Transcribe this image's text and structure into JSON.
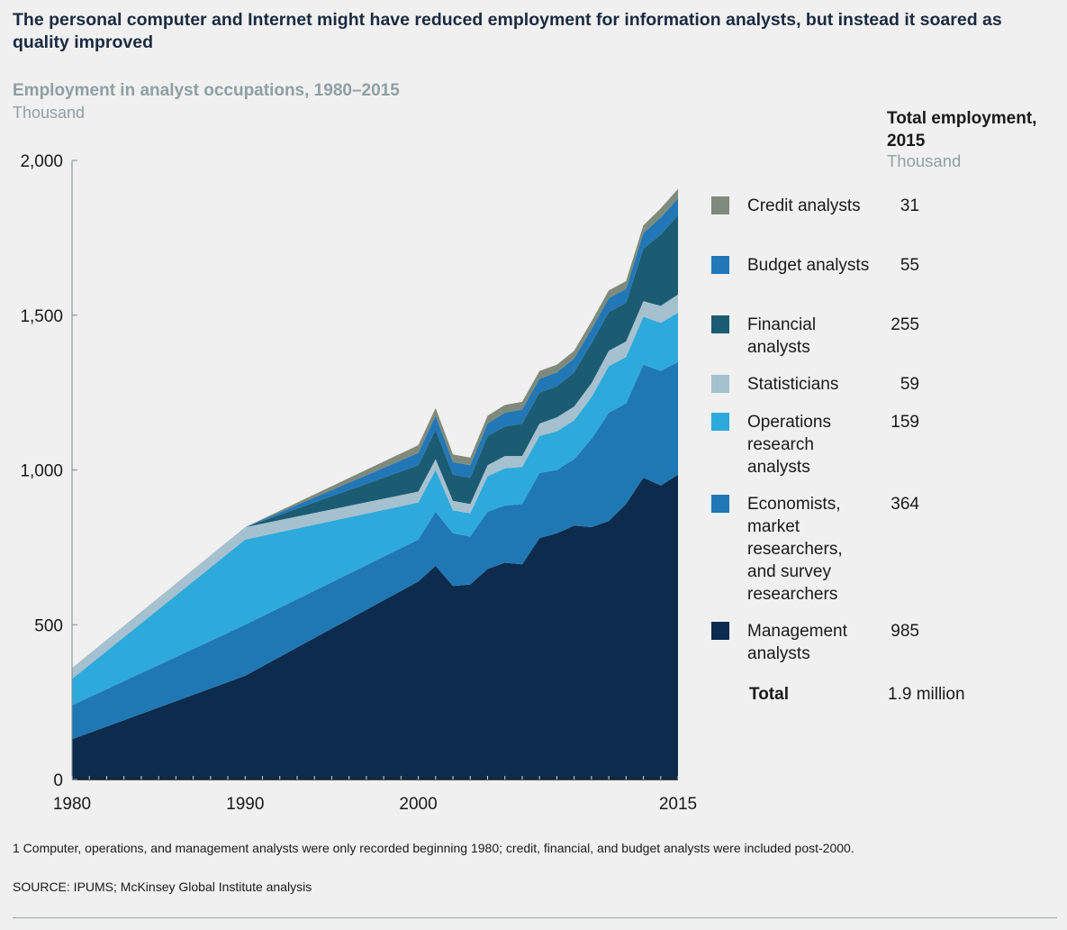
{
  "headline": "The personal computer and Internet might have reduced employment for information analysts, but instead it soared as quality improved",
  "subtitle": "Employment in analyst occupations, 1980–2015",
  "unit": "Thousand",
  "total_header": "Total employment, 2015",
  "total_unit": "Thousand",
  "legend": [
    {
      "label": "Credit analysts",
      "value": "31",
      "color": "#7f8a7c"
    },
    {
      "label": "Budget analysts",
      "value": "55",
      "color": "#2277b6"
    },
    {
      "label": "Financial analysts",
      "value": "255",
      "color": "#1c5c73"
    },
    {
      "label": "Statisticians",
      "value": "59",
      "color": "#a5c0cf"
    },
    {
      "label": "Operations research analysts",
      "value": "159",
      "color": "#2daadb"
    },
    {
      "label": "Economists, market researchers, and survey researchers",
      "value": "364",
      "color": "#1f78b4"
    },
    {
      "label": "Management analysts",
      "value": "985",
      "color": "#0d2b4c"
    }
  ],
  "total": {
    "label": "Total",
    "value": "1.9 million"
  },
  "footnote": "1   Computer, operations, and management analysts were only recorded beginning 1980; credit, financial, and budget analysts were included post-2000.",
  "source": "SOURCE:  IPUMS; McKinsey Global Institute analysis",
  "chart_data": {
    "type": "area",
    "stacked": true,
    "title": "Employment in analyst occupations, 1980–2015",
    "ylabel": "Thousand",
    "ylim": [
      0,
      2000
    ],
    "xlim": [
      1980,
      2015
    ],
    "yticks": [
      "0",
      "500",
      "1,000",
      "1,500",
      "2,000"
    ],
    "xticks": [
      "1980",
      "1990",
      "2000",
      "2015"
    ],
    "x": [
      1980,
      1990,
      2000,
      2001,
      2002,
      2003,
      2004,
      2005,
      2006,
      2007,
      2008,
      2009,
      2010,
      2011,
      2012,
      2013,
      2014,
      2015
    ],
    "series": [
      {
        "name": "Management analysts",
        "color": "#0d2b4c",
        "values": [
          130,
          335,
          640,
          690,
          625,
          630,
          680,
          700,
          695,
          780,
          795,
          820,
          815,
          835,
          890,
          975,
          950,
          985
        ]
      },
      {
        "name": "Economists, market researchers, and survey researchers",
        "color": "#1f78b4",
        "values": [
          110,
          165,
          135,
          175,
          170,
          155,
          185,
          185,
          195,
          210,
          205,
          215,
          285,
          350,
          325,
          365,
          370,
          364
        ]
      },
      {
        "name": "Operations research analysts",
        "color": "#2daadb",
        "values": [
          85,
          275,
          120,
          135,
          75,
          75,
          115,
          120,
          120,
          120,
          125,
          125,
          135,
          150,
          150,
          155,
          155,
          159
        ]
      },
      {
        "name": "Statisticians",
        "color": "#a5c0cf",
        "values": [
          35,
          40,
          35,
          35,
          30,
          30,
          35,
          40,
          35,
          40,
          45,
          45,
          45,
          50,
          50,
          50,
          55,
          59
        ]
      },
      {
        "name": "Financial analysts",
        "color": "#1c5c73",
        "values": [
          0,
          0,
          85,
          95,
          85,
          85,
          95,
          95,
          105,
          100,
          100,
          110,
          130,
          125,
          125,
          170,
          230,
          255
        ]
      },
      {
        "name": "Budget analysts",
        "color": "#2277b6",
        "values": [
          0,
          0,
          40,
          45,
          40,
          40,
          40,
          45,
          45,
          45,
          45,
          45,
          45,
          45,
          45,
          50,
          55,
          55
        ]
      },
      {
        "name": "Credit analysts",
        "color": "#7f8a7c",
        "values": [
          0,
          0,
          25,
          25,
          25,
          25,
          25,
          25,
          25,
          25,
          25,
          25,
          25,
          25,
          25,
          25,
          30,
          31
        ]
      }
    ]
  }
}
